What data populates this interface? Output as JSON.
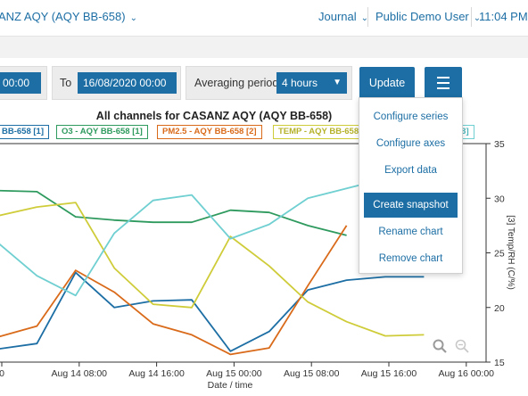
{
  "header": {
    "title": "ANZ AQY (AQY BB-658)",
    "journal": "Journal",
    "user": "Public Demo User",
    "time": "11:04 PM"
  },
  "controls": {
    "from_value": "00:00",
    "to_label": "To",
    "to_value": "16/08/2020 00:00",
    "averaging_label": "Averaging period",
    "averaging_value": "4 hours",
    "update_label": "Update"
  },
  "menu": {
    "items": [
      "Configure series",
      "Configure axes",
      "Export data",
      "Create snapshot",
      "Rename chart",
      "Remove chart"
    ],
    "active_index": 3
  },
  "chart_data": {
    "type": "line",
    "title": "All channels for CASANZ AQY (AQY BB-658)",
    "xlabel": "Date / time",
    "ylabel_right": "[3] Temp/RH (C/%)",
    "x_ticks": [
      "0",
      "Aug 14 08:00",
      "Aug 14 16:00",
      "Aug 15 00:00",
      "Aug 15 08:00",
      "Aug 15 16:00",
      "Aug 16 00:00"
    ],
    "y_right_ticks": [
      "15",
      "20",
      "25",
      "30",
      "35"
    ],
    "y_right_range": [
      15,
      35
    ],
    "x_hours": [
      0,
      4,
      8,
      12,
      16,
      20,
      24,
      28,
      32,
      36,
      40,
      44
    ],
    "legend": [
      {
        "label": "BB-658 [1]",
        "color": "#1c6ea4"
      },
      {
        "label": "O3 - AQY BB-658 [1]",
        "color": "#2e9a5e"
      },
      {
        "label": "PM2.5 - AQY BB-658 [2]",
        "color": "#d96a1a"
      },
      {
        "label": "TEMP - AQY BB-658",
        "color": "#cfcc3a"
      },
      {
        "label": "[3]",
        "color": "#6fcfd1"
      }
    ],
    "series": [
      {
        "color": "#1c6ea4",
        "values": [
          16.2,
          16.7,
          23.2,
          20.0,
          20.6,
          20.7,
          16.0,
          17.8,
          21.6,
          22.5,
          22.8,
          22.8
        ]
      },
      {
        "color": "#2e9a5e",
        "values": [
          30.7,
          30.6,
          28.3,
          28.0,
          27.8,
          27.8,
          28.9,
          28.7,
          27.5,
          26.6,
          null,
          null
        ]
      },
      {
        "color": "#d96a1a",
        "values": [
          17.3,
          18.3,
          23.4,
          21.4,
          18.5,
          17.5,
          15.7,
          16.3,
          22.0,
          27.5,
          null,
          null
        ]
      },
      {
        "color": "#cfcc3a",
        "values": [
          28.4,
          29.2,
          29.6,
          23.6,
          20.3,
          20.0,
          26.5,
          23.8,
          20.5,
          18.7,
          17.4,
          17.5
        ]
      },
      {
        "color": "#6fcfd1",
        "values": [
          25.9,
          22.9,
          21.1,
          26.8,
          29.8,
          30.3,
          26.3,
          27.6,
          30.0,
          30.9,
          31.8,
          null
        ]
      }
    ]
  }
}
